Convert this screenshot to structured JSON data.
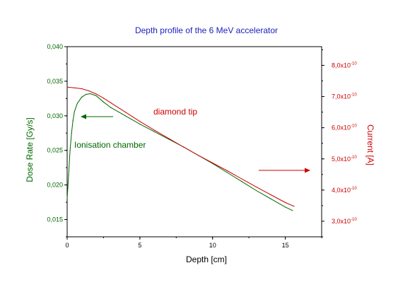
{
  "chart_data": {
    "type": "line",
    "title": "Depth profile of the 6 MeV accelerator",
    "xlabel": "Depth [cm]",
    "ylabel_left": "Dose Rate [Gy/s]",
    "ylabel_right": "Current [A]",
    "xlim": [
      0,
      17.5
    ],
    "ylim_left": [
      0.0125,
      0.04
    ],
    "ylim_right": [
      2.5e-10,
      8.6e-10
    ],
    "x_ticks": [
      "0",
      "5",
      "10",
      "15"
    ],
    "y_ticks_left": [
      "0,015",
      "0,020",
      "0,025",
      "0,030",
      "0,035",
      "0,040"
    ],
    "y_ticks_right": [
      "3,0x10",
      "4,0x10",
      "5,0x10",
      "6,0x10",
      "7,0x10",
      "8,0x10"
    ],
    "y_ticks_right_exponent": "-10",
    "grid": false,
    "colors": {
      "left": "#006600",
      "right": "#cc0000",
      "title": "#2020c0"
    },
    "annotations": {
      "ionisation": "Ionisation chamber",
      "diamond": "diamond tip"
    },
    "series": [
      {
        "name": "Ionisation chamber",
        "axis": "left",
        "x": [
          0.0,
          0.1,
          0.2,
          0.3,
          0.4,
          0.5,
          0.7,
          1.0,
          1.3,
          1.6,
          2.0,
          2.5,
          3.0,
          4.0,
          5.0,
          6.0,
          7.0,
          8.0,
          9.0,
          10.0,
          11.0,
          12.0,
          13.0,
          14.0,
          15.0,
          15.5
        ],
        "y": [
          0.018,
          0.0215,
          0.025,
          0.0275,
          0.0293,
          0.0306,
          0.0318,
          0.0327,
          0.0331,
          0.0332,
          0.0329,
          0.032,
          0.0312,
          0.03,
          0.0288,
          0.0277,
          0.0266,
          0.0255,
          0.0243,
          0.0231,
          0.0218,
          0.0205,
          0.0192,
          0.018,
          0.0168,
          0.0163
        ]
      },
      {
        "name": "diamond tip",
        "axis": "right",
        "x": [
          0.0,
          0.5,
          1.0,
          1.5,
          2.0,
          2.5,
          3.0,
          4.0,
          5.0,
          6.0,
          7.0,
          8.0,
          9.0,
          10.0,
          11.0,
          12.0,
          13.0,
          14.0,
          15.0,
          15.6
        ],
        "y": [
          7.3e-10,
          7.28e-10,
          7.25e-10,
          7.18e-10,
          7.08e-10,
          6.95e-10,
          6.8e-10,
          6.5e-10,
          6.2e-10,
          5.92e-10,
          5.65e-10,
          5.38e-10,
          5.12e-10,
          4.87e-10,
          4.62e-10,
          4.36e-10,
          4.1e-10,
          3.85e-10,
          3.6e-10,
          3.48e-10
        ]
      }
    ]
  }
}
